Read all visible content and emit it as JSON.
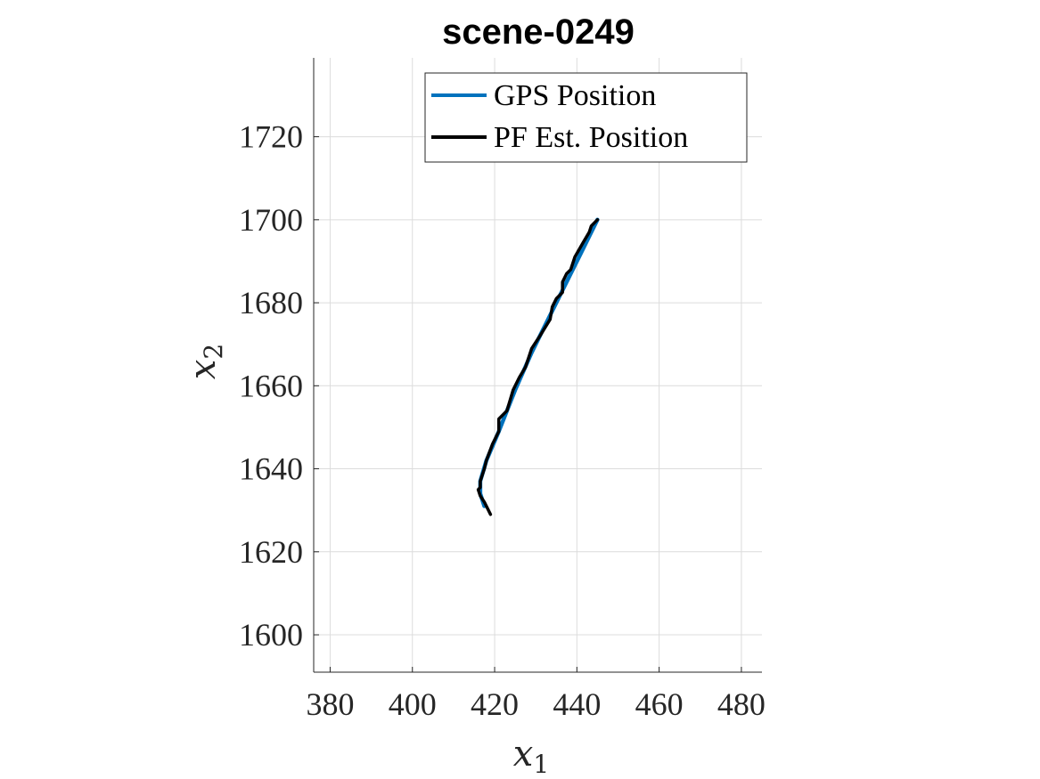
{
  "chart_data": {
    "type": "line",
    "title": "scene-0249",
    "xlabel": "x",
    "xlabel_sub": "1",
    "ylabel": "x",
    "ylabel_sub": "2",
    "xlim": [
      376,
      485
    ],
    "ylim": [
      1591,
      1739
    ],
    "xticks": [
      380,
      400,
      420,
      440,
      460,
      480
    ],
    "yticks": [
      1600,
      1620,
      1640,
      1660,
      1680,
      1700,
      1720
    ],
    "grid": true,
    "legend_position": "top-right",
    "series": [
      {
        "name": "GPS Position",
        "color": "#0072BD",
        "x": [
          445.0,
          441.0,
          437.0,
          433.0,
          429.0,
          425.0,
          421.0,
          418.0,
          416.5,
          416.5,
          417.5
        ],
        "y": [
          1700.0,
          1692.0,
          1684.0,
          1676.0,
          1668.0,
          1659.0,
          1649.0,
          1642.0,
          1637.0,
          1634.0,
          1631.0
        ]
      },
      {
        "name": "PF Est. Position",
        "color": "#000000",
        "x": [
          445.0,
          443.5,
          443.0,
          441.5,
          439.5,
          438.5,
          437.5,
          436.5,
          436.5,
          435.0,
          434.0,
          433.5,
          431.0,
          429.0,
          427.5,
          426.0,
          424.5,
          423.0,
          421.0,
          421.0,
          419.5,
          418.0,
          417.5,
          416.5,
          416.5,
          416.0,
          416.5,
          417.5,
          419.0
        ],
        "y": [
          1700.0,
          1698.5,
          1697.0,
          1694.5,
          1691.0,
          1688.0,
          1687.0,
          1685.0,
          1682.5,
          1681.0,
          1679.0,
          1676.0,
          1672.0,
          1669.0,
          1664.5,
          1662.0,
          1659.0,
          1654.0,
          1652.0,
          1649.0,
          1646.0,
          1642.0,
          1640.0,
          1637.0,
          1635.5,
          1635.0,
          1633.5,
          1632.0,
          1629.0
        ]
      }
    ]
  }
}
